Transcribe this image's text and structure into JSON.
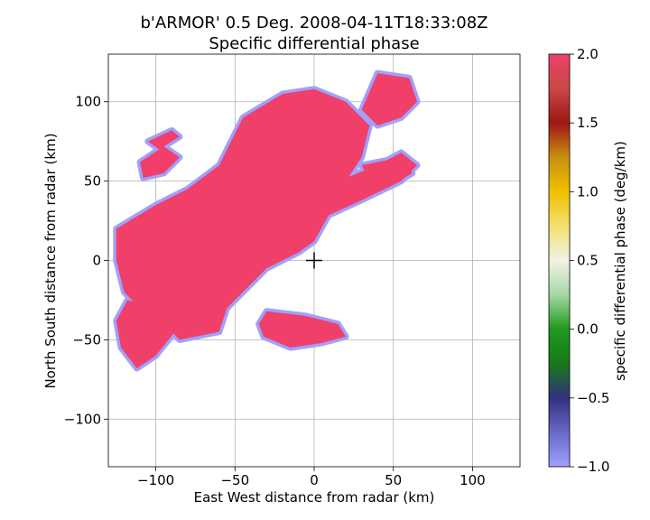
{
  "chart_data": {
    "type": "heatmap",
    "title_line1": "b'ARMOR' 0.5 Deg. 2008-04-11T18:33:08Z",
    "title_line2": "Specific differential phase",
    "xlabel": "East West distance from radar (km)",
    "ylabel": "North South distance from radar (km)",
    "xlim": [
      -130,
      130
    ],
    "ylim": [
      -130,
      130
    ],
    "xticks": [
      -100,
      -50,
      0,
      50,
      100
    ],
    "yticks": [
      -100,
      -50,
      0,
      50,
      100
    ],
    "xtick_labels": [
      "−100",
      "−50",
      "0",
      "50",
      "100"
    ],
    "ytick_labels": [
      "−100",
      "−50",
      "0",
      "50",
      "100"
    ],
    "grid": true,
    "radar_marker": {
      "x": 0,
      "y": 0,
      "symbol": "+"
    },
    "colorbar": {
      "label": "specific differential phase (deg/km)",
      "min": -1.0,
      "max": 2.0,
      "ticks": [
        -1.0,
        -0.5,
        0.0,
        0.5,
        1.0,
        1.5,
        2.0
      ],
      "tick_labels": [
        "−1.0",
        "−0.5",
        "0.0",
        "0.5",
        "1.0",
        "1.5",
        "2.0"
      ],
      "stops": [
        {
          "value": -1.0,
          "color": "#a0a0ff"
        },
        {
          "value": -0.75,
          "color": "#6868c8"
        },
        {
          "value": -0.5,
          "color": "#323280"
        },
        {
          "value": -0.25,
          "color": "#187818"
        },
        {
          "value": 0.0,
          "color": "#1e9a1e"
        },
        {
          "value": 0.25,
          "color": "#a4d8a4"
        },
        {
          "value": 0.5,
          "color": "#f2f2e6"
        },
        {
          "value": 0.75,
          "color": "#f2e070"
        },
        {
          "value": 1.0,
          "color": "#f0c000"
        },
        {
          "value": 1.25,
          "color": "#c89010"
        },
        {
          "value": 1.5,
          "color": "#9e1616"
        },
        {
          "value": 1.75,
          "color": "#c84848"
        },
        {
          "value": 2.0,
          "color": "#f0406a"
        }
      ]
    },
    "echo_regions": [
      {
        "name": "main-band",
        "value": 2.0,
        "points": [
          [
            -125,
            20
          ],
          [
            -100,
            35
          ],
          [
            -80,
            45
          ],
          [
            -60,
            60
          ],
          [
            -45,
            90
          ],
          [
            -20,
            105
          ],
          [
            0,
            108
          ],
          [
            20,
            100
          ],
          [
            35,
            85
          ],
          [
            30,
            65
          ],
          [
            20,
            50
          ],
          [
            25,
            40
          ],
          [
            10,
            30
          ],
          [
            0,
            12
          ],
          [
            -10,
            5
          ],
          [
            -20,
            0
          ],
          [
            -30,
            -5
          ],
          [
            -45,
            -20
          ],
          [
            -55,
            -30
          ],
          [
            -60,
            -45
          ],
          [
            -85,
            -50
          ],
          [
            -95,
            -40
          ],
          [
            -110,
            -30
          ],
          [
            -120,
            -20
          ],
          [
            -125,
            0
          ]
        ]
      },
      {
        "name": "sw-lobe",
        "value": 2.0,
        "points": [
          [
            -118,
            -25
          ],
          [
            -95,
            -30
          ],
          [
            -88,
            -45
          ],
          [
            -100,
            -60
          ],
          [
            -112,
            -68
          ],
          [
            -122,
            -55
          ],
          [
            -125,
            -38
          ]
        ]
      },
      {
        "name": "ne-streak-lower",
        "value": 2.0,
        "points": [
          [
            -5,
            22
          ],
          [
            30,
            38
          ],
          [
            55,
            50
          ],
          [
            65,
            60
          ],
          [
            55,
            68
          ],
          [
            40,
            60
          ],
          [
            20,
            52
          ],
          [
            2,
            40
          ]
        ]
      },
      {
        "name": "ne-cap",
        "value": 2.0,
        "points": [
          [
            30,
            95
          ],
          [
            40,
            118
          ],
          [
            60,
            115
          ],
          [
            65,
            100
          ],
          [
            55,
            90
          ],
          [
            40,
            85
          ]
        ]
      },
      {
        "name": "nw-cell",
        "value": 2.0,
        "points": [
          [
            -110,
            62
          ],
          [
            -95,
            72
          ],
          [
            -85,
            65
          ],
          [
            -95,
            55
          ],
          [
            -108,
            52
          ]
        ]
      },
      {
        "name": "nw-cell-2",
        "value": 2.0,
        "points": [
          [
            -105,
            75
          ],
          [
            -90,
            82
          ],
          [
            -85,
            78
          ],
          [
            -98,
            70
          ]
        ]
      },
      {
        "name": "se-cell",
        "value": 2.0,
        "points": [
          [
            -30,
            -32
          ],
          [
            -5,
            -35
          ],
          [
            15,
            -40
          ],
          [
            20,
            -48
          ],
          [
            5,
            -52
          ],
          [
            -15,
            -55
          ],
          [
            -32,
            -48
          ],
          [
            -35,
            -40
          ]
        ]
      },
      {
        "name": "east-cell",
        "value": 2.0,
        "points": [
          [
            30,
            60
          ],
          [
            55,
            65
          ],
          [
            62,
            55
          ],
          [
            50,
            48
          ],
          [
            35,
            50
          ]
        ]
      }
    ]
  }
}
